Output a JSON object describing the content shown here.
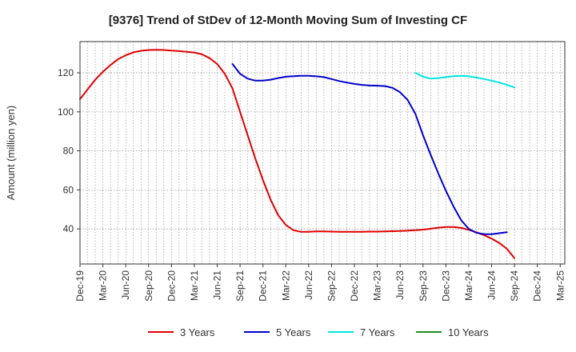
{
  "chart_data": {
    "type": "line",
    "title": "[9376]  Trend of StDev of 12-Month Moving Sum of Investing CF",
    "ylabel": "Amount (million yen)",
    "xlabel": "",
    "ylim": [
      22,
      136
    ],
    "yticks": [
      40,
      60,
      80,
      100,
      120
    ],
    "x_tick_labels": [
      "Dec-19",
      "Mar-20",
      "Jun-20",
      "Sep-20",
      "Dec-20",
      "Mar-21",
      "Jun-21",
      "Sep-21",
      "Dec-21",
      "Mar-22",
      "Jun-22",
      "Sep-22",
      "Dec-22",
      "Mar-23",
      "Jun-23",
      "Sep-23",
      "Dec-23",
      "Mar-24",
      "Jun-24",
      "Sep-24",
      "Dec-24",
      "Mar-25"
    ],
    "grid": true,
    "legend_position": "bottom",
    "series": [
      {
        "name": "3 Years",
        "color": "#e00000",
        "points": [
          [
            "Dec-19",
            106.5
          ],
          [
            "Jan-20",
            111.5
          ],
          [
            "Feb-20",
            116.5
          ],
          [
            "Mar-20",
            120.5
          ],
          [
            "Apr-20",
            124
          ],
          [
            "May-20",
            127
          ],
          [
            "Jun-20",
            129
          ],
          [
            "Jul-20",
            130.5
          ],
          [
            "Aug-20",
            131.3
          ],
          [
            "Sep-20",
            131.7
          ],
          [
            "Oct-20",
            131.8
          ],
          [
            "Nov-20",
            131.7
          ],
          [
            "Dec-20",
            131.4
          ],
          [
            "Jan-21",
            131.1
          ],
          [
            "Feb-21",
            130.8
          ],
          [
            "Mar-21",
            130.4
          ],
          [
            "Apr-21",
            129.5
          ],
          [
            "May-21",
            127.5
          ],
          [
            "Jun-21",
            124.5
          ],
          [
            "Jul-21",
            119.5
          ],
          [
            "Aug-21",
            112
          ],
          [
            "Sep-21",
            100
          ],
          [
            "Oct-21",
            88
          ],
          [
            "Nov-21",
            76
          ],
          [
            "Dec-21",
            65
          ],
          [
            "Jan-22",
            55
          ],
          [
            "Feb-22",
            47
          ],
          [
            "Mar-22",
            42
          ],
          [
            "Apr-22",
            39.3
          ],
          [
            "May-22",
            38.5
          ],
          [
            "Jun-22",
            38.5
          ],
          [
            "Jul-22",
            38.7
          ],
          [
            "Aug-22",
            38.7
          ],
          [
            "Sep-22",
            38.6
          ],
          [
            "Oct-22",
            38.5
          ],
          [
            "Nov-22",
            38.5
          ],
          [
            "Dec-22",
            38.5
          ],
          [
            "Jan-23",
            38.5
          ],
          [
            "Feb-23",
            38.6
          ],
          [
            "Mar-23",
            38.6
          ],
          [
            "Apr-23",
            38.7
          ],
          [
            "May-23",
            38.8
          ],
          [
            "Jun-23",
            38.9
          ],
          [
            "Jul-23",
            39.1
          ],
          [
            "Aug-23",
            39.3
          ],
          [
            "Sep-23",
            39.6
          ],
          [
            "Oct-23",
            40.1
          ],
          [
            "Nov-23",
            40.6
          ],
          [
            "Dec-23",
            41
          ],
          [
            "Jan-24",
            41
          ],
          [
            "Feb-24",
            40.5
          ],
          [
            "Mar-24",
            39.5
          ],
          [
            "Apr-24",
            38.3
          ],
          [
            "May-24",
            36.8
          ],
          [
            "Jun-24",
            35
          ],
          [
            "Jul-24",
            32.8
          ],
          [
            "Aug-24",
            29.8
          ],
          [
            "Sep-24",
            25
          ]
        ]
      },
      {
        "name": "5 Years",
        "color": "#0000cc",
        "points": [
          [
            "Aug-21",
            124.5
          ],
          [
            "Sep-21",
            119.5
          ],
          [
            "Oct-21",
            117
          ],
          [
            "Nov-21",
            116
          ],
          [
            "Dec-21",
            116
          ],
          [
            "Jan-22",
            116.5
          ],
          [
            "Feb-22",
            117.3
          ],
          [
            "Mar-22",
            118
          ],
          [
            "Apr-22",
            118.3
          ],
          [
            "May-22",
            118.5
          ],
          [
            "Jun-22",
            118.5
          ],
          [
            "Jul-22",
            118.2
          ],
          [
            "Aug-22",
            117.8
          ],
          [
            "Sep-22",
            116.8
          ],
          [
            "Oct-22",
            115.8
          ],
          [
            "Nov-22",
            115
          ],
          [
            "Dec-22",
            114.3
          ],
          [
            "Jan-23",
            113.8
          ],
          [
            "Feb-23",
            113.5
          ],
          [
            "Mar-23",
            113.4
          ],
          [
            "Apr-23",
            113.2
          ],
          [
            "May-23",
            112.3
          ],
          [
            "Jun-23",
            110
          ],
          [
            "Jul-23",
            106
          ],
          [
            "Aug-23",
            99
          ],
          [
            "Sep-23",
            88
          ],
          [
            "Oct-23",
            78
          ],
          [
            "Nov-23",
            68.5
          ],
          [
            "Dec-23",
            59.5
          ],
          [
            "Jan-24",
            51.5
          ],
          [
            "Feb-24",
            44.5
          ],
          [
            "Mar-24",
            40
          ],
          [
            "Apr-24",
            38
          ],
          [
            "May-24",
            37.3
          ],
          [
            "Jun-24",
            37.3
          ],
          [
            "Jul-24",
            37.8
          ],
          [
            "Aug-24",
            38.3
          ]
        ]
      },
      {
        "name": "7 Years",
        "color": "#00e5e5",
        "points": [
          [
            "Aug-23",
            120
          ],
          [
            "Sep-23",
            118
          ],
          [
            "Oct-23",
            117
          ],
          [
            "Nov-23",
            117.3
          ],
          [
            "Dec-23",
            117.8
          ],
          [
            "Jan-24",
            118.3
          ],
          [
            "Feb-24",
            118.5
          ],
          [
            "Mar-24",
            118.2
          ],
          [
            "Apr-24",
            117.6
          ],
          [
            "May-24",
            116.8
          ],
          [
            "Jun-24",
            116
          ],
          [
            "Jul-24",
            115
          ],
          [
            "Aug-24",
            113.8
          ],
          [
            "Sep-24",
            112.5
          ]
        ]
      },
      {
        "name": "10 Years",
        "color": "#228b22",
        "points": []
      }
    ]
  }
}
